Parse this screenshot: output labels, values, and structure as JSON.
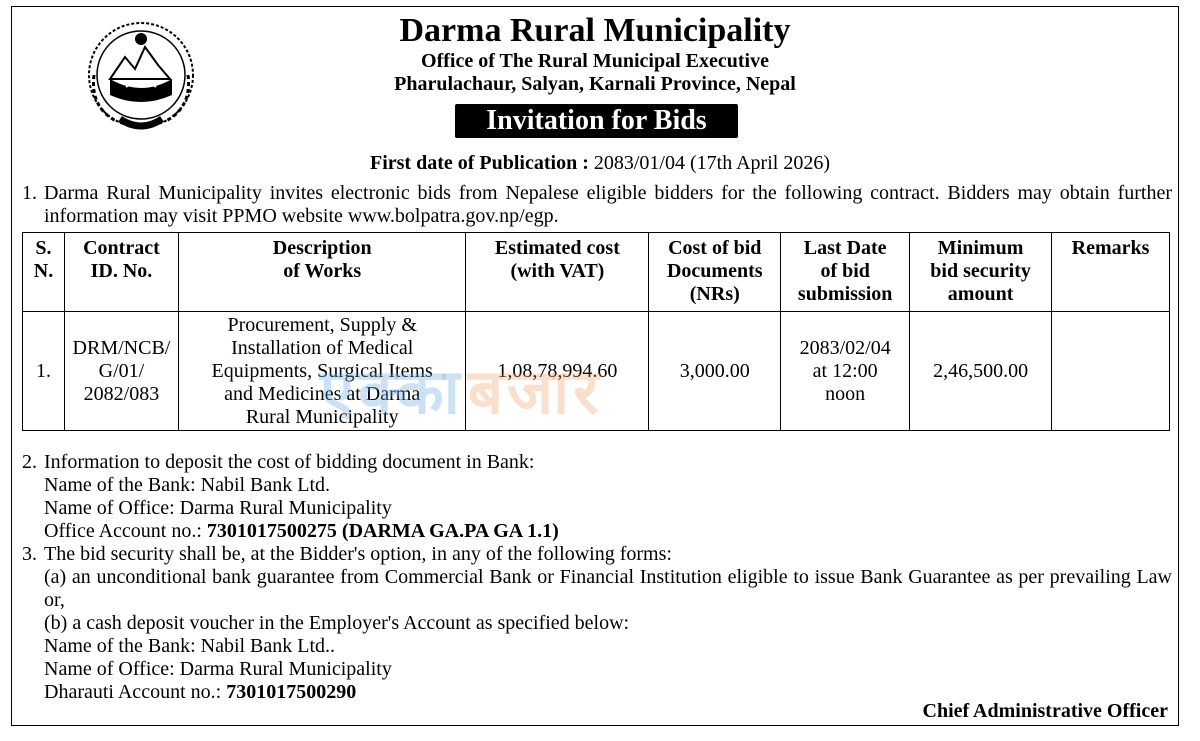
{
  "header": {
    "title": "Darma Rural Municipality",
    "office": "Office of The Rural Municipal Executive",
    "address": "Pharulachaur, Salyan, Karnali Province, Nepal",
    "notice_title": "Invitation for Bids"
  },
  "emblem": {
    "icon": "nepal-government-emblem-icon",
    "motto": "जननी जन्मभूमिश्च स्वर्गादपि गरीयसी"
  },
  "publication": {
    "label": "First date of Publication :",
    "value": "2083/01/04 (17th April 2026)"
  },
  "para1": {
    "num": "1.",
    "text": "Darma Rural Municipality invites electronic bids from Nepalese eligible bidders for the following contract. Bidders may obtain further information may visit PPMO website www.bolpatra.gov.np/egp."
  },
  "table": {
    "headers": [
      [
        "S.",
        "N."
      ],
      [
        "Contract",
        "ID. No."
      ],
      [
        "Description",
        "of Works"
      ],
      [
        "Estimated cost",
        "(with VAT)"
      ],
      [
        "Cost of bid",
        "Documents",
        "(NRs)"
      ],
      [
        "Last Date",
        "of bid",
        "submission"
      ],
      [
        "Minimum",
        "bid security",
        "amount"
      ],
      [
        "Remarks"
      ]
    ],
    "row": {
      "sn": "1.",
      "contract_id": [
        "DRM/NCB/",
        "G/01/",
        "2082/083"
      ],
      "description": [
        "Procurement, Supply &",
        "Installation of Medical",
        "Equipments, Surgical Items",
        "and Medicines at Darma",
        "Rural Municipality"
      ],
      "estimated_cost": "1,08,78,994.60",
      "doc_cost": "3,000.00",
      "last_date": [
        "2083/02/04",
        "at 12:00",
        "noon"
      ],
      "bid_security": "2,46,500.00",
      "remarks": ""
    }
  },
  "watermark": {
    "part1": "एक्का",
    "part2": "बजार"
  },
  "para2": {
    "num": "2.",
    "intro": "Information to deposit the cost of bidding document in Bank:",
    "bank": "Name of the Bank: Nabil Bank Ltd.",
    "office": "Name of Office: Darma Rural Municipality",
    "account_label": "Office Account no.: ",
    "account_value": "7301017500275 (DARMA GA.PA GA 1.1)"
  },
  "para3": {
    "num": "3.",
    "intro": "The bid security shall be, at the Bidder's option, in any of the following forms:",
    "option_a": "(a) an unconditional bank guarantee from Commercial Bank or Financial Institution eligible to issue Bank Guarantee as per prevailing Law or,",
    "option_b": "(b) a cash deposit voucher in the Employer's Account as specified below:",
    "bank": "Name of the Bank: Nabil Bank Ltd..",
    "office": "Name of Office: Darma Rural Municipality",
    "account_label": "Dharauti Account no.: ",
    "account_value": "7301017500290"
  },
  "signature": "Chief Administrative Officer"
}
